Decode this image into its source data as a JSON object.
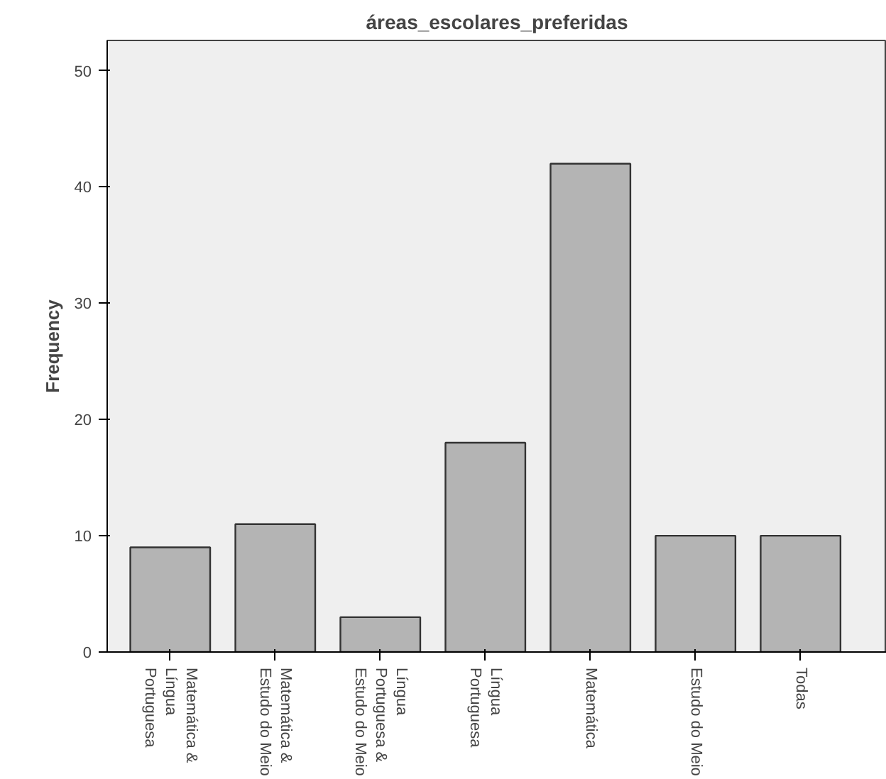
{
  "chart_data": {
    "type": "bar",
    "title": "áreas_escolares_preferidas",
    "ylabel": "Frequency",
    "categories": [
      "Matemática & Língua Portuguesa",
      "Matemática & Estudo do Meio",
      "Língua Portuguesa & Estudo do Meio",
      "Língua Portuguesa",
      "Matemática",
      "Estudo do Meio",
      "Todas"
    ],
    "values": [
      9,
      11,
      3,
      18,
      42,
      10,
      10
    ],
    "color": "#b4b4b4",
    "ylim": [
      0,
      52.6
    ],
    "yticks": [
      0,
      10,
      20,
      30,
      40,
      50
    ],
    "grid": false
  }
}
